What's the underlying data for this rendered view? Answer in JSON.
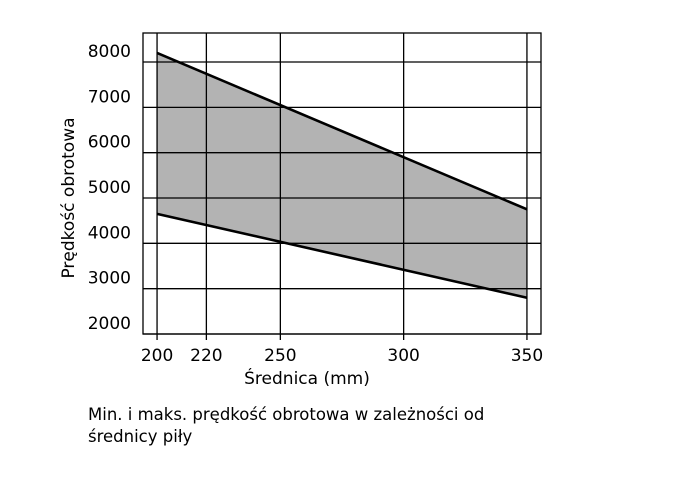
{
  "chart_data": {
    "type": "range_area",
    "x_label": "Średnica (mm)",
    "y_label": "Prędkość obrotowa",
    "caption": "Min. i maks. prędkość obrotowa w zależności od średnicy piły",
    "x": [
      200,
      350
    ],
    "upper_values": [
      8200,
      4750
    ],
    "lower_values": [
      4650,
      2800
    ],
    "fill_color": "#b3b3b3",
    "line_color": "#000000",
    "xlim": [
      194.3,
      355.7
    ],
    "xticks": [
      200,
      220,
      250,
      300,
      350
    ],
    "ylim": [
      2000,
      8640
    ],
    "yticks": [
      2000,
      3000,
      4000,
      5000,
      6000,
      7000,
      8000
    ],
    "grid": true
  }
}
